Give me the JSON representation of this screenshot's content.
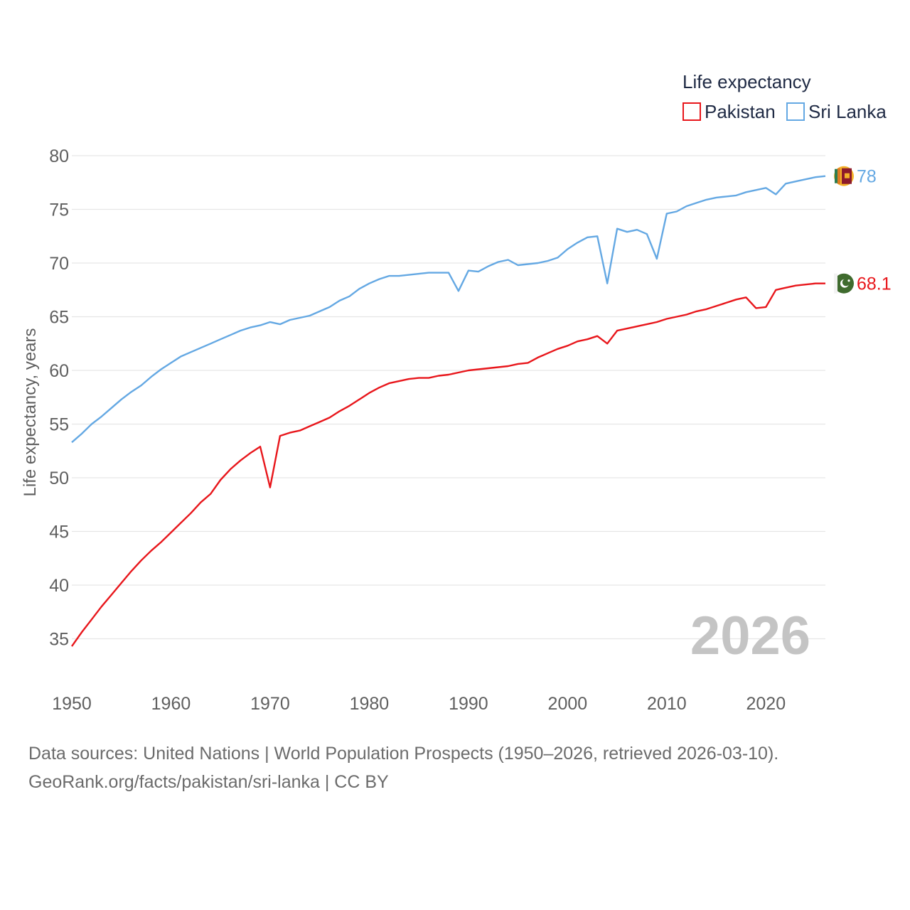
{
  "chart_data": {
    "type": "line",
    "legend": {
      "title": "Life expectancy",
      "placement": "top-right",
      "entries": [
        {
          "name": "Pakistan",
          "color": "#e8161b"
        },
        {
          "name": "Sri Lanka",
          "color": "#64a8e3"
        }
      ]
    },
    "ylabel": "Life expectancy, years",
    "xlabel": "",
    "xlim": [
      1950,
      2026
    ],
    "ylim": [
      32.5,
      81
    ],
    "yticks": [
      "35",
      "40",
      "45",
      "50",
      "55",
      "60",
      "65",
      "70",
      "75",
      "80"
    ],
    "xticks": [
      "1950",
      "1960",
      "1970",
      "1980",
      "1990",
      "2000",
      "2010",
      "2020"
    ],
    "x": [
      1950,
      1951,
      1952,
      1953,
      1954,
      1955,
      1956,
      1957,
      1958,
      1959,
      1960,
      1961,
      1962,
      1963,
      1964,
      1965,
      1966,
      1967,
      1968,
      1969,
      1970,
      1971,
      1972,
      1973,
      1974,
      1975,
      1976,
      1977,
      1978,
      1979,
      1980,
      1981,
      1982,
      1983,
      1984,
      1985,
      1986,
      1987,
      1988,
      1989,
      1990,
      1991,
      1992,
      1993,
      1994,
      1995,
      1996,
      1997,
      1998,
      1999,
      2000,
      2001,
      2002,
      2003,
      2004,
      2005,
      2006,
      2007,
      2008,
      2009,
      2010,
      2011,
      2012,
      2013,
      2014,
      2015,
      2016,
      2017,
      2018,
      2019,
      2020,
      2021,
      2022,
      2023,
      2024,
      2025,
      2026
    ],
    "series": [
      {
        "name": "Pakistan",
        "color": "#e8161b",
        "end_label": "68.1",
        "flag": "pakistan-flag",
        "values": [
          34.3,
          35.6,
          36.8,
          38.0,
          39.1,
          40.2,
          41.3,
          42.3,
          43.2,
          44.0,
          44.9,
          45.8,
          46.7,
          47.7,
          48.5,
          49.8,
          50.8,
          51.6,
          52.3,
          52.9,
          49.1,
          53.9,
          54.2,
          54.4,
          54.8,
          55.2,
          55.6,
          56.2,
          56.7,
          57.3,
          57.9,
          58.4,
          58.8,
          59.0,
          59.2,
          59.3,
          59.3,
          59.5,
          59.6,
          59.8,
          60.0,
          60.1,
          60.2,
          60.3,
          60.4,
          60.6,
          60.7,
          61.2,
          61.6,
          62.0,
          62.3,
          62.7,
          62.9,
          63.2,
          62.5,
          63.7,
          63.9,
          64.1,
          64.3,
          64.5,
          64.8,
          65.0,
          65.2,
          65.5,
          65.7,
          66.0,
          66.3,
          66.6,
          66.8,
          65.8,
          65.9,
          67.5,
          67.7,
          67.9,
          68.0,
          68.1,
          68.1
        ]
      },
      {
        "name": "Sri Lanka",
        "color": "#64a8e3",
        "end_label": "78",
        "flag": "sri-lanka-flag",
        "values": [
          53.3,
          54.1,
          55.0,
          55.7,
          56.5,
          57.3,
          58.0,
          58.6,
          59.4,
          60.1,
          60.7,
          61.3,
          61.7,
          62.1,
          62.5,
          62.9,
          63.3,
          63.7,
          64.0,
          64.2,
          64.5,
          64.3,
          64.7,
          64.9,
          65.1,
          65.5,
          65.9,
          66.5,
          66.9,
          67.6,
          68.1,
          68.5,
          68.8,
          68.8,
          68.9,
          69.0,
          69.1,
          69.1,
          69.1,
          67.4,
          69.3,
          69.2,
          69.7,
          70.1,
          70.3,
          69.8,
          69.9,
          70.0,
          70.2,
          70.5,
          71.3,
          71.9,
          72.4,
          72.5,
          68.1,
          73.2,
          72.9,
          73.1,
          72.7,
          70.4,
          74.6,
          74.8,
          75.3,
          75.6,
          75.9,
          76.1,
          76.2,
          76.3,
          76.6,
          76.8,
          77.0,
          76.4,
          77.4,
          77.6,
          77.8,
          78.0,
          78.1
        ]
      }
    ],
    "watermark_year": "2026"
  },
  "footer": {
    "line1": "Data sources: United Nations | World Population Prospects (1950–2026, retrieved 2026-03-10).",
    "line2": "GeoRank.org/facts/pakistan/sri-lanka | CC BY"
  }
}
